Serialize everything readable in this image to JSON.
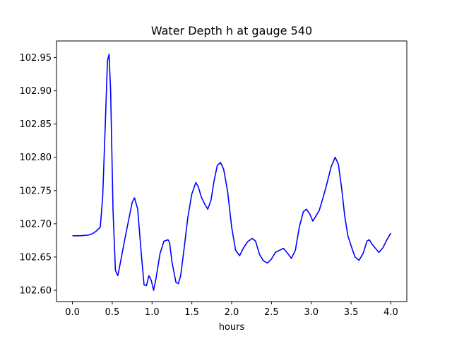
{
  "chart_data": {
    "type": "line",
    "title": "Water Depth h at gauge 540",
    "xlabel": "hours",
    "ylabel": "",
    "xlim": [
      -0.2,
      4.2
    ],
    "ylim": [
      102.583,
      102.975
    ],
    "xticks": [
      0.0,
      0.5,
      1.0,
      1.5,
      2.0,
      2.5,
      3.0,
      3.5,
      4.0
    ],
    "xtick_labels": [
      "0.0",
      "0.5",
      "1.0",
      "1.5",
      "2.0",
      "2.5",
      "3.0",
      "3.5",
      "4.0"
    ],
    "yticks": [
      102.6,
      102.65,
      102.7,
      102.75,
      102.8,
      102.85,
      102.9,
      102.95
    ],
    "ytick_labels": [
      "102.60",
      "102.65",
      "102.70",
      "102.75",
      "102.80",
      "102.85",
      "102.90",
      "102.95"
    ],
    "grid": false,
    "series": [
      {
        "color": "#0000ff",
        "x": [
          0.0,
          0.1,
          0.2,
          0.25,
          0.3,
          0.35,
          0.38,
          0.41,
          0.44,
          0.46,
          0.48,
          0.51,
          0.54,
          0.57,
          0.6,
          0.65,
          0.7,
          0.75,
          0.78,
          0.82,
          0.86,
          0.9,
          0.93,
          0.96,
          0.99,
          1.02,
          1.05,
          1.1,
          1.15,
          1.2,
          1.22,
          1.25,
          1.3,
          1.33,
          1.36,
          1.4,
          1.45,
          1.5,
          1.55,
          1.58,
          1.62,
          1.66,
          1.7,
          1.74,
          1.78,
          1.82,
          1.86,
          1.9,
          1.95,
          2.0,
          2.05,
          2.1,
          2.15,
          2.2,
          2.26,
          2.3,
          2.35,
          2.4,
          2.45,
          2.5,
          2.55,
          2.6,
          2.65,
          2.7,
          2.75,
          2.8,
          2.85,
          2.9,
          2.94,
          2.98,
          3.02,
          3.06,
          3.1,
          3.15,
          3.2,
          3.25,
          3.3,
          3.34,
          3.38,
          3.42,
          3.46,
          3.5,
          3.55,
          3.6,
          3.65,
          3.7,
          3.73,
          3.76,
          3.8,
          3.85,
          3.9,
          3.95,
          4.0
        ],
        "y": [
          102.682,
          102.682,
          102.683,
          102.685,
          102.689,
          102.695,
          102.74,
          102.84,
          102.945,
          102.955,
          102.9,
          102.72,
          102.63,
          102.622,
          102.64,
          102.672,
          102.702,
          102.732,
          102.739,
          102.722,
          102.662,
          102.608,
          102.607,
          102.622,
          102.615,
          102.6,
          102.618,
          102.655,
          102.674,
          102.676,
          102.672,
          102.643,
          102.612,
          102.61,
          102.622,
          102.66,
          102.71,
          102.745,
          102.762,
          102.756,
          102.74,
          102.73,
          102.722,
          102.735,
          102.765,
          102.788,
          102.792,
          102.782,
          102.748,
          102.695,
          102.66,
          102.652,
          102.664,
          102.673,
          102.678,
          102.674,
          102.654,
          102.644,
          102.641,
          102.647,
          102.657,
          102.66,
          102.663,
          102.656,
          102.648,
          102.66,
          102.695,
          102.718,
          102.722,
          102.715,
          102.704,
          102.712,
          102.72,
          102.74,
          102.762,
          102.786,
          102.8,
          102.79,
          102.755,
          102.712,
          102.682,
          102.667,
          102.65,
          102.645,
          102.655,
          102.674,
          102.676,
          102.67,
          102.664,
          102.657,
          102.664,
          102.676,
          102.686
        ]
      }
    ]
  }
}
